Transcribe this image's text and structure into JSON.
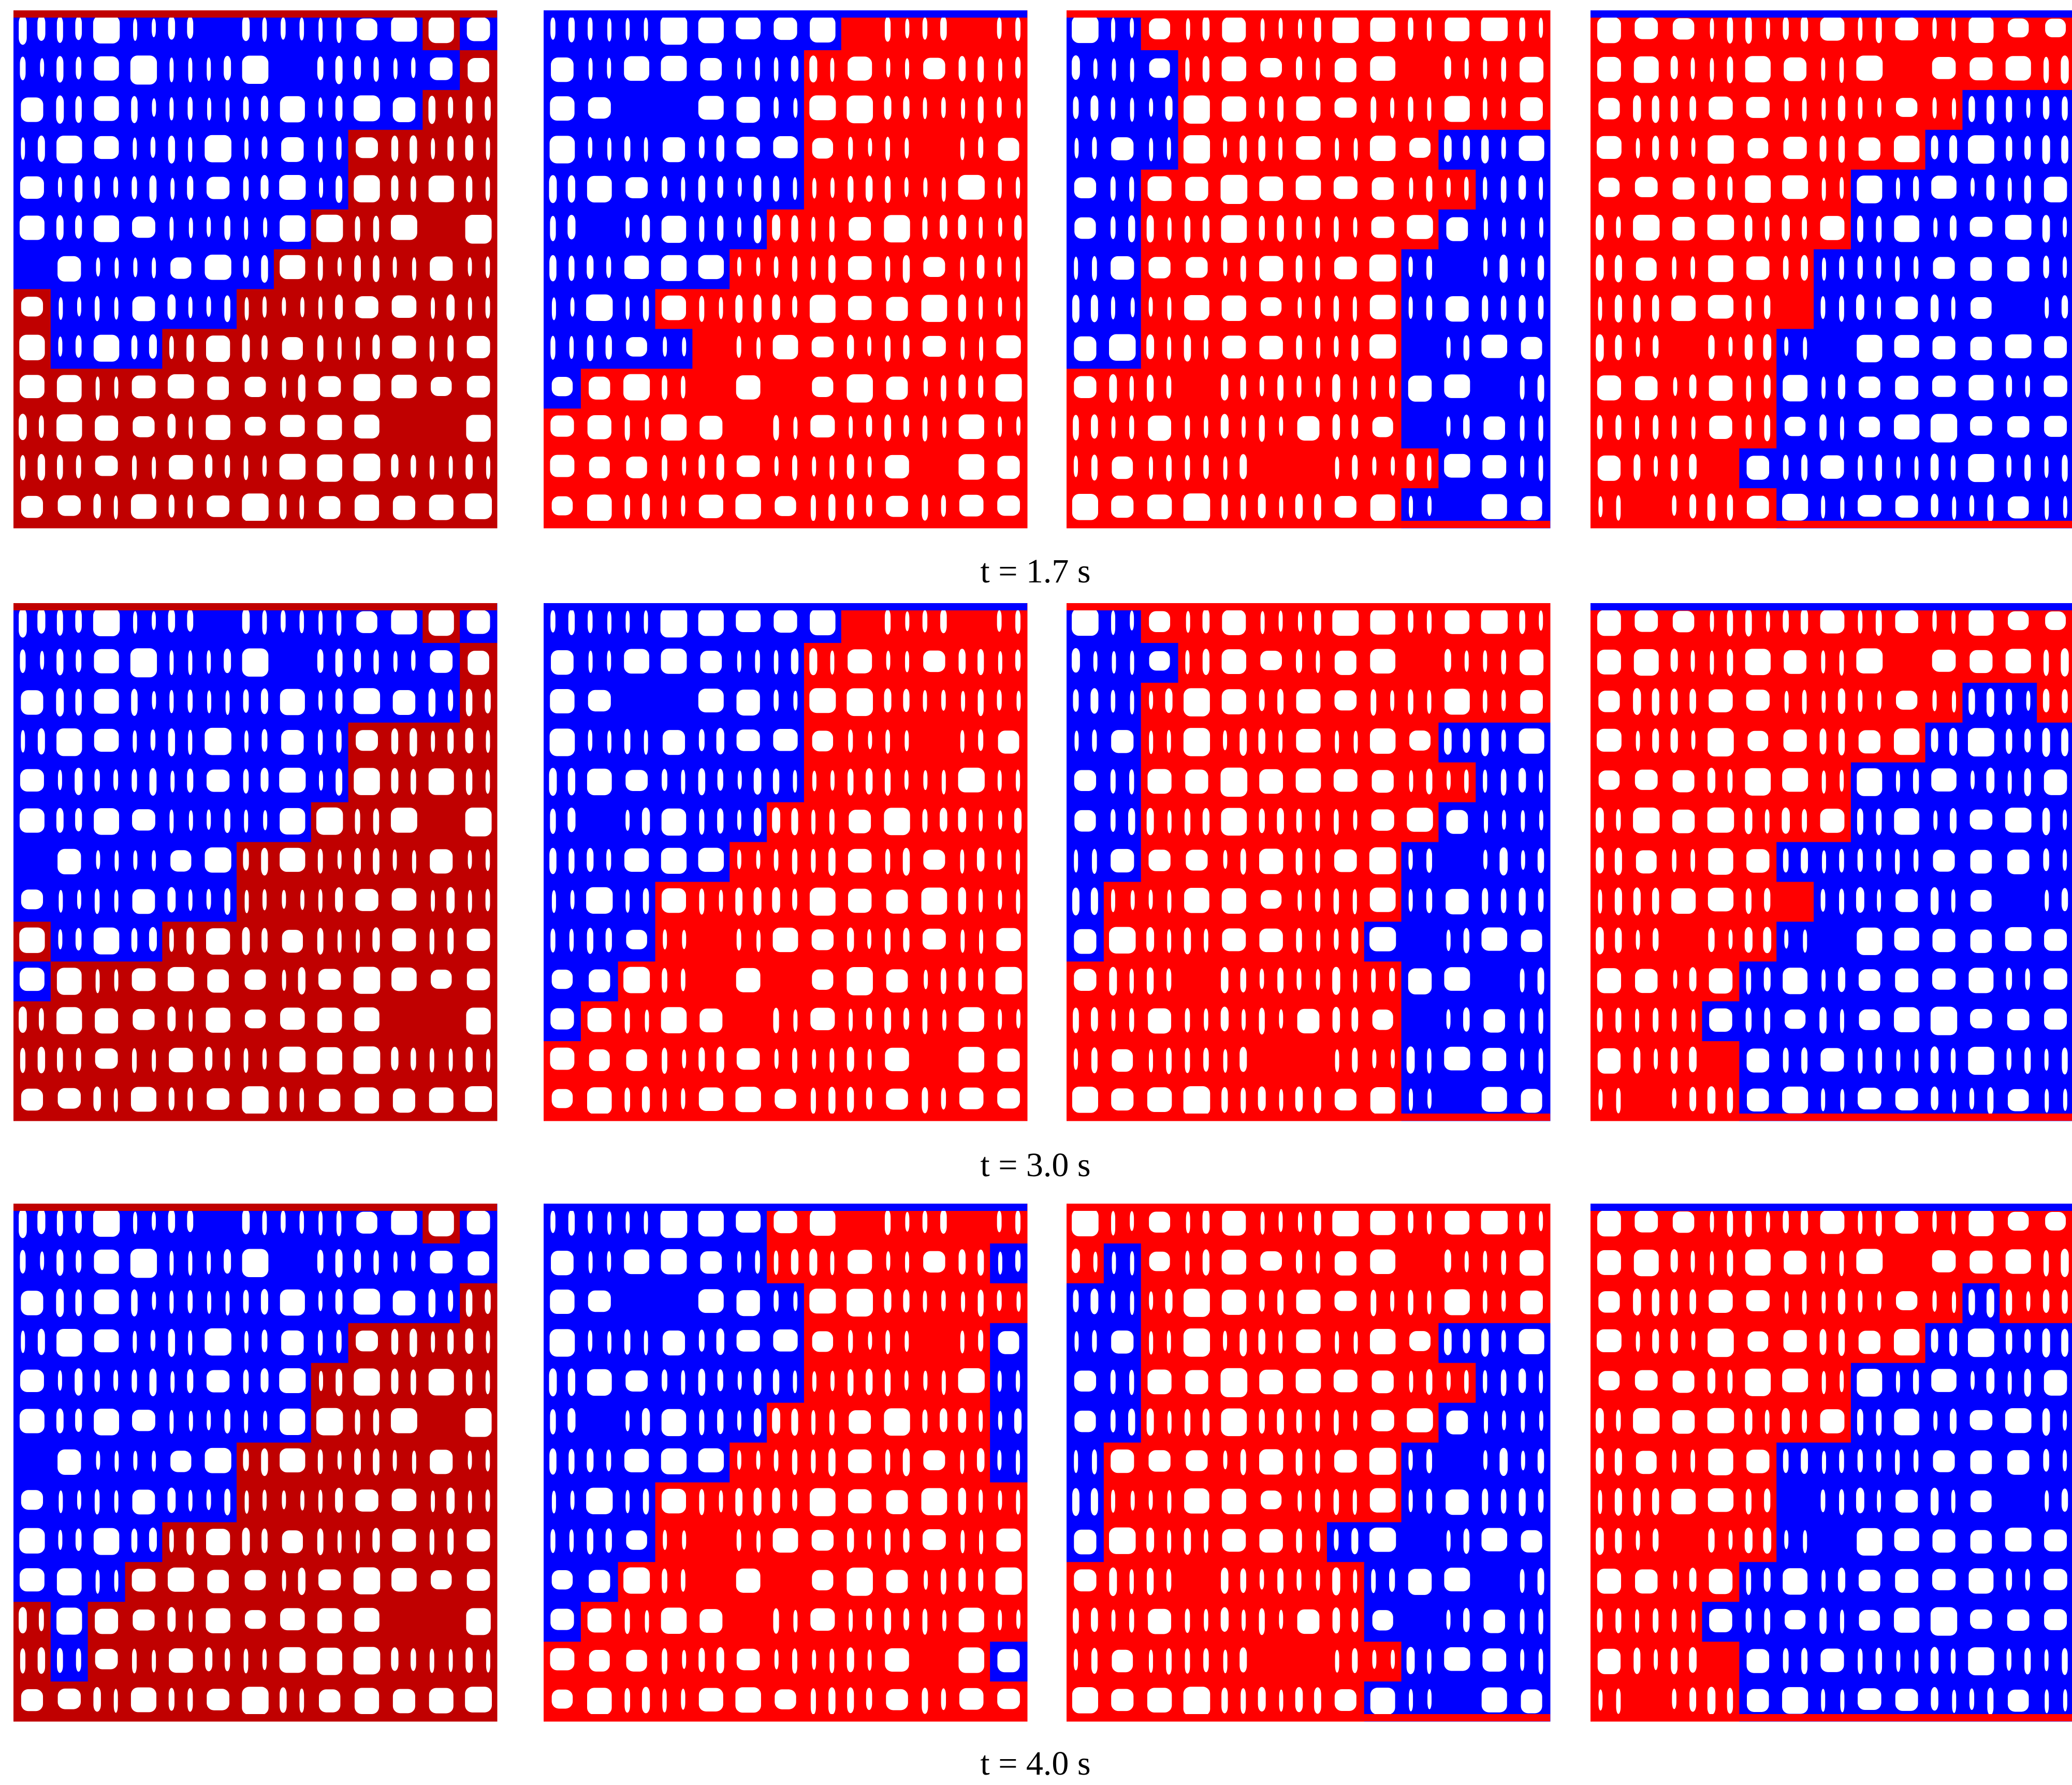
{
  "captions": [
    "t = 1.7 s",
    "t = 3.0 s",
    "t = 4.0 s"
  ]
}
